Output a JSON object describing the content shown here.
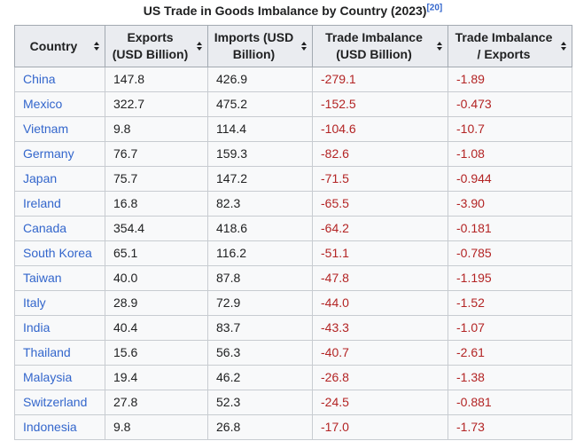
{
  "title": {
    "text": "US Trade in Goods Imbalance by Country (2023)",
    "citation": "[20]"
  },
  "table": {
    "columns": [
      {
        "label": "Country"
      },
      {
        "label": "Exports (USD Billion)"
      },
      {
        "label": "Imports (USD Billion)"
      },
      {
        "label": "Trade Imbalance (USD Billion)"
      },
      {
        "label": "Trade Imbalance / Exports"
      }
    ],
    "rows": [
      {
        "country": "China",
        "exports": "147.8",
        "imports": "426.9",
        "imbalance": "-279.1",
        "ratio": "-1.89"
      },
      {
        "country": "Mexico",
        "exports": "322.7",
        "imports": "475.2",
        "imbalance": "-152.5",
        "ratio": "-0.473"
      },
      {
        "country": "Vietnam",
        "exports": "9.8",
        "imports": "114.4",
        "imbalance": "-104.6",
        "ratio": "-10.7"
      },
      {
        "country": "Germany",
        "exports": "76.7",
        "imports": "159.3",
        "imbalance": "-82.6",
        "ratio": "-1.08"
      },
      {
        "country": "Japan",
        "exports": "75.7",
        "imports": "147.2",
        "imbalance": "-71.5",
        "ratio": "-0.944"
      },
      {
        "country": "Ireland",
        "exports": "16.8",
        "imports": "82.3",
        "imbalance": "-65.5",
        "ratio": "-3.90"
      },
      {
        "country": "Canada",
        "exports": "354.4",
        "imports": "418.6",
        "imbalance": "-64.2",
        "ratio": "-0.181"
      },
      {
        "country": "South Korea",
        "exports": "65.1",
        "imports": "116.2",
        "imbalance": "-51.1",
        "ratio": "-0.785"
      },
      {
        "country": "Taiwan",
        "exports": "40.0",
        "imports": "87.8",
        "imbalance": "-47.8",
        "ratio": "-1.195"
      },
      {
        "country": "Italy",
        "exports": "28.9",
        "imports": "72.9",
        "imbalance": "-44.0",
        "ratio": "-1.52"
      },
      {
        "country": "India",
        "exports": "40.4",
        "imports": "83.7",
        "imbalance": "-43.3",
        "ratio": "-1.07"
      },
      {
        "country": "Thailand",
        "exports": "15.6",
        "imports": "56.3",
        "imbalance": "-40.7",
        "ratio": "-2.61"
      },
      {
        "country": "Malaysia",
        "exports": "19.4",
        "imports": "46.2",
        "imbalance": "-26.8",
        "ratio": "-1.38"
      },
      {
        "country": "Switzerland",
        "exports": "27.8",
        "imports": "52.3",
        "imbalance": "-24.5",
        "ratio": "-0.881"
      },
      {
        "country": "Indonesia",
        "exports": "9.8",
        "imports": "26.8",
        "imbalance": "-17.0",
        "ratio": "-1.73"
      }
    ]
  },
  "colors": {
    "link_blue": "#3366cc",
    "negative_red": "#b32424",
    "header_background": "#eaecf0",
    "table_background": "#f8f9fa",
    "outer_border": "#a2a9b1",
    "inner_border": "#c8ccd1",
    "text": "#202122"
  },
  "icons": {
    "sort_icon": "up-down-triangles"
  },
  "chart_data": {
    "type": "table",
    "title": "US Trade in Goods Imbalance by Country (2023)",
    "citation_ref": "[20]",
    "columns": [
      "Country",
      "Exports (USD Billion)",
      "Imports (USD Billion)",
      "Trade Imbalance (USD Billion)",
      "Trade Imbalance / Exports"
    ],
    "rows": [
      [
        "China",
        147.8,
        426.9,
        -279.1,
        -1.89
      ],
      [
        "Mexico",
        322.7,
        475.2,
        -152.5,
        -0.473
      ],
      [
        "Vietnam",
        9.8,
        114.4,
        -104.6,
        -10.7
      ],
      [
        "Germany",
        76.7,
        159.3,
        -82.6,
        -1.08
      ],
      [
        "Japan",
        75.7,
        147.2,
        -71.5,
        -0.944
      ],
      [
        "Ireland",
        16.8,
        82.3,
        -65.5,
        -3.9
      ],
      [
        "Canada",
        354.4,
        418.6,
        -64.2,
        -0.181
      ],
      [
        "South Korea",
        65.1,
        116.2,
        -51.1,
        -0.785
      ],
      [
        "Taiwan",
        40.0,
        87.8,
        -47.8,
        -1.195
      ],
      [
        "Italy",
        28.9,
        72.9,
        -44.0,
        -1.52
      ],
      [
        "India",
        40.4,
        83.7,
        -43.3,
        -1.07
      ],
      [
        "Thailand",
        15.6,
        56.3,
        -40.7,
        -2.61
      ],
      [
        "Malaysia",
        19.4,
        46.2,
        -26.8,
        -1.38
      ],
      [
        "Switzerland",
        27.8,
        52.3,
        -24.5,
        -0.881
      ],
      [
        "Indonesia",
        9.8,
        26.8,
        -17.0,
        -1.73
      ]
    ],
    "notes": "Sortable wikitable; country names are links (blue); trade imbalance and ratio values shown in red (negative)."
  }
}
